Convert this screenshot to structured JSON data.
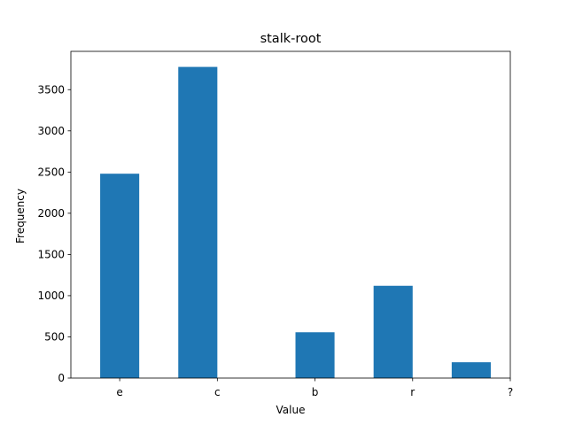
{
  "chart_data": {
    "type": "bar",
    "title": "stalk-root",
    "xlabel": "Value",
    "ylabel": "Frequency",
    "x_tick_labels": [
      "e",
      "c",
      "b",
      "r",
      "?"
    ],
    "x_range": [
      -0.5,
      4.0
    ],
    "bars": [
      {
        "x_start": -0.2,
        "x_end": 0.2,
        "value": 2480
      },
      {
        "x_start": 0.6,
        "x_end": 1.0,
        "value": 3776
      },
      {
        "x_start": 1.8,
        "x_end": 2.2,
        "value": 556
      },
      {
        "x_start": 2.6,
        "x_end": 3.0,
        "value": 1120
      },
      {
        "x_start": 3.4,
        "x_end": 3.8,
        "value": 192
      }
    ],
    "ylim": [
      0,
      3964.8
    ],
    "y_ticks": [
      0,
      500,
      1000,
      1500,
      2000,
      2500,
      3000,
      3500
    ],
    "bar_color": "#1f77b4",
    "grid": false,
    "legend": "none"
  }
}
